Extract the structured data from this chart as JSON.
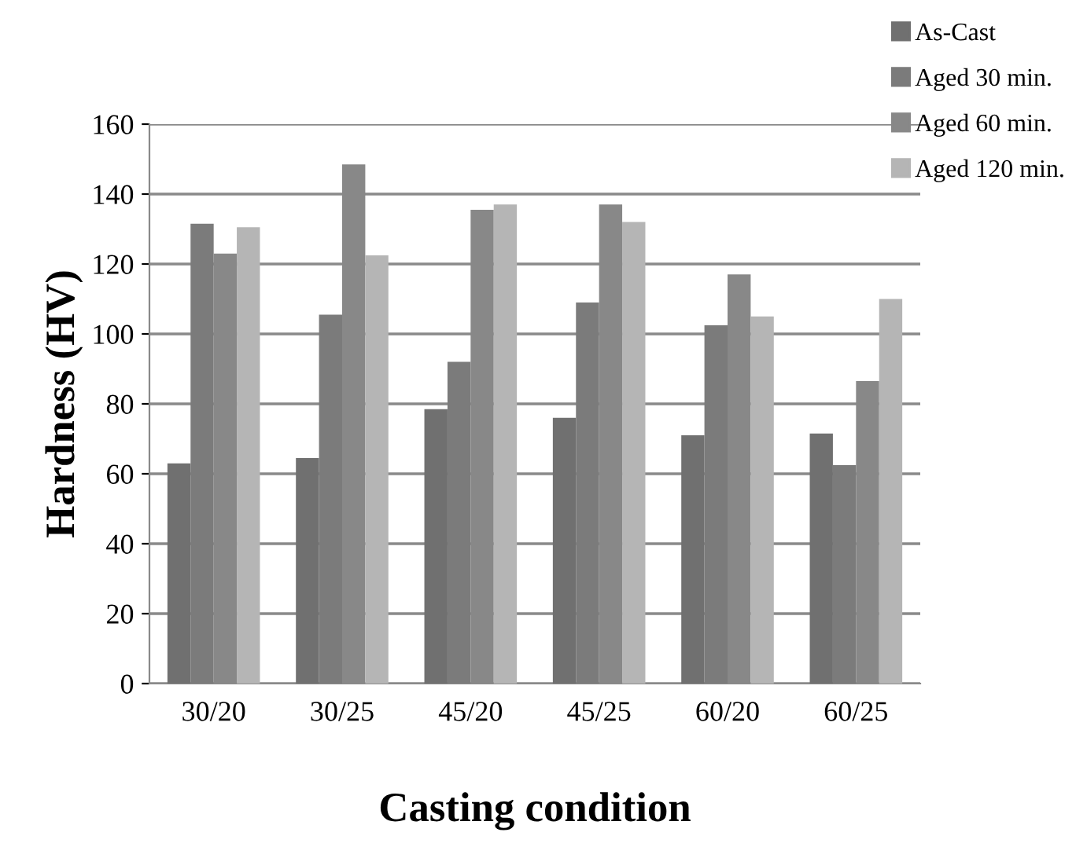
{
  "chart_data": {
    "type": "bar",
    "xlabel": "Casting condition",
    "ylabel": "Hardness (HV)",
    "categories": [
      "30/20",
      "30/25",
      "45/20",
      "45/25",
      "60/20",
      "60/25"
    ],
    "series": [
      {
        "name": "As-Cast",
        "color": "#707070",
        "values": [
          63,
          64.5,
          78.5,
          76,
          71,
          71.5
        ]
      },
      {
        "name": "Aged 30 min.",
        "color": "#7b7b7b",
        "values": [
          131.5,
          105.5,
          92,
          109,
          102.5,
          62.5
        ]
      },
      {
        "name": "Aged 60 min.",
        "color": "#888888",
        "values": [
          123,
          148.5,
          135.5,
          137,
          117,
          86.5
        ]
      },
      {
        "name": "Aged 120 min.",
        "color": "#b5b5b5",
        "values": [
          130.5,
          122.5,
          137,
          132,
          105,
          110
        ]
      }
    ],
    "ylim": [
      0,
      160
    ],
    "yticks": [
      0,
      20,
      40,
      60,
      80,
      100,
      120,
      140,
      160
    ],
    "grid": "y",
    "legend": "top right"
  }
}
